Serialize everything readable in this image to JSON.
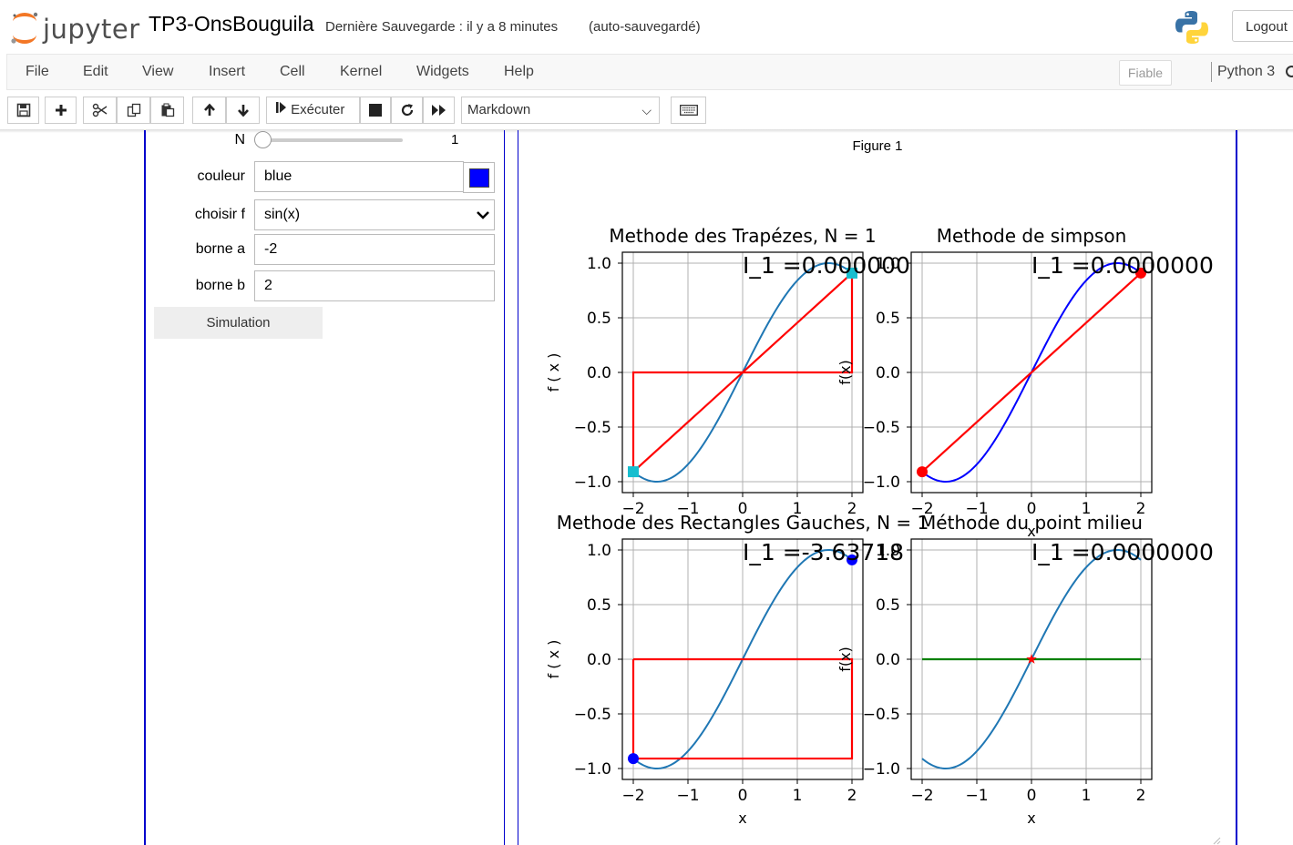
{
  "header": {
    "logo_text": "jupyter",
    "notebook_name": "TP3-OnsBouguila",
    "save_status": "Dernière Sauvegarde : il y a 8 minutes",
    "autosave": "(auto-sauvegardé)",
    "logout_label": "Logout"
  },
  "menu": {
    "items": [
      "File",
      "Edit",
      "View",
      "Insert",
      "Cell",
      "Kernel",
      "Widgets",
      "Help"
    ],
    "trusted_label": "Fiable",
    "kernel_name": "Python 3"
  },
  "toolbar": {
    "run_label": "Exécuter",
    "cell_type": "Markdown",
    "icons": [
      "save-icon",
      "plus-icon",
      "scissors-icon",
      "copy-icon",
      "paste-icon",
      "arrow-up-icon",
      "arrow-down-icon",
      "run-icon",
      "stop-icon",
      "restart-icon",
      "fast-forward-icon",
      "keyboard-icon"
    ]
  },
  "widgets": {
    "n_label": "N",
    "n_value": "1",
    "n_slider_fraction": 0.0,
    "color_label": "couleur",
    "color_value": "blue",
    "color_hex": "#0000ff",
    "f_label": "choisir f",
    "f_value": "sin(x)",
    "a_label": "borne a",
    "a_value": "-2",
    "b_label": "borne b",
    "b_value": "2",
    "simulate_label": "Simulation"
  },
  "figure": {
    "title": "Figure 1"
  },
  "chart_data": [
    {
      "type": "line",
      "title": "Methode des Trapézes, N = 1",
      "annotation": "I_1 =0.000000",
      "xlabel": "",
      "ylabel": "f ( x )",
      "xlim": [
        -2.2,
        2.2
      ],
      "ylim": [
        -1.1,
        1.1
      ],
      "xticks": [
        "−2",
        "−1",
        "0",
        "1",
        "2"
      ],
      "yticks": [
        "1.0",
        "0.5",
        "0.0",
        "−0.5",
        "−1.0"
      ],
      "grid": true,
      "series": [
        {
          "kind": "curve",
          "func": "sin",
          "x": [
            -2,
            2
          ],
          "color": "#1f77b4"
        },
        {
          "kind": "polyline",
          "x": [
            -2,
            2
          ],
          "y": [
            -0.909,
            0.909
          ],
          "color": "#ff0000"
        },
        {
          "kind": "polyline",
          "x": [
            -2,
            -2,
            2,
            2
          ],
          "y": [
            -0.909,
            0,
            0,
            0.909
          ],
          "color": "#ff0000"
        },
        {
          "kind": "points",
          "x": [
            -2,
            2
          ],
          "y": [
            -0.909,
            0.909
          ],
          "color": "#17becf",
          "marker": "square"
        }
      ]
    },
    {
      "type": "line",
      "title": "Methode de simpson",
      "annotation": "I_1 =0.0000000",
      "xlabel": "x",
      "ylabel": "f(x)",
      "xlim": [
        -2.2,
        2.2
      ],
      "ylim": [
        -1.1,
        1.1
      ],
      "xticks": [
        "−2",
        "−1",
        "0",
        "1",
        "2"
      ],
      "yticks": [
        "1.0",
        "0.5",
        "0.0",
        "−0.5",
        "−1.0"
      ],
      "grid": true,
      "series": [
        {
          "kind": "curve",
          "func": "sin",
          "x": [
            -2,
            2
          ],
          "color": "#0000ff"
        },
        {
          "kind": "polyline",
          "x": [
            -2,
            2
          ],
          "y": [
            -0.909,
            0.909
          ],
          "color": "#ff0000"
        },
        {
          "kind": "points",
          "x": [
            -2,
            2
          ],
          "y": [
            -0.909,
            0.909
          ],
          "color": "#ff0000",
          "marker": "circle"
        }
      ]
    },
    {
      "type": "line",
      "title": "Methode des Rectangles Gauches, N = 1",
      "annotation": "I_1 =-3.63718",
      "xlabel": "x",
      "ylabel": "f ( x )",
      "xlim": [
        -2.2,
        2.2
      ],
      "ylim": [
        -1.1,
        1.1
      ],
      "xticks": [
        "−2",
        "−1",
        "0",
        "1",
        "2"
      ],
      "yticks": [
        "1.0",
        "0.5",
        "0.0",
        "−0.5",
        "−1.0"
      ],
      "grid": true,
      "series": [
        {
          "kind": "curve",
          "func": "sin",
          "x": [
            -2,
            2
          ],
          "color": "#1f77b4"
        },
        {
          "kind": "polyline",
          "x": [
            -2,
            -2,
            2,
            2,
            -2
          ],
          "y": [
            0,
            -0.909,
            -0.909,
            0,
            0
          ],
          "color": "#ff0000"
        },
        {
          "kind": "points",
          "x": [
            -2,
            2
          ],
          "y": [
            -0.909,
            0.909
          ],
          "color": "#0000ff",
          "marker": "circle"
        }
      ]
    },
    {
      "type": "line",
      "title": "Méthode du point milieu",
      "annotation": "I_1 =0.0000000",
      "xlabel": "x",
      "ylabel": "f(x)",
      "xlim": [
        -2.2,
        2.2
      ],
      "ylim": [
        -1.1,
        1.1
      ],
      "xticks": [
        "−2",
        "−1",
        "0",
        "1",
        "2"
      ],
      "yticks": [
        "1.0",
        "0.5",
        "0.0",
        "−0.5",
        "−1.0"
      ],
      "grid": true,
      "series": [
        {
          "kind": "curve",
          "func": "sin",
          "x": [
            -2,
            2
          ],
          "color": "#1f77b4"
        },
        {
          "kind": "polyline",
          "x": [
            -2,
            2
          ],
          "y": [
            0,
            0
          ],
          "color": "#008000"
        },
        {
          "kind": "points",
          "x": [
            0
          ],
          "y": [
            0
          ],
          "color": "#ff0000",
          "marker": "star"
        }
      ]
    }
  ]
}
